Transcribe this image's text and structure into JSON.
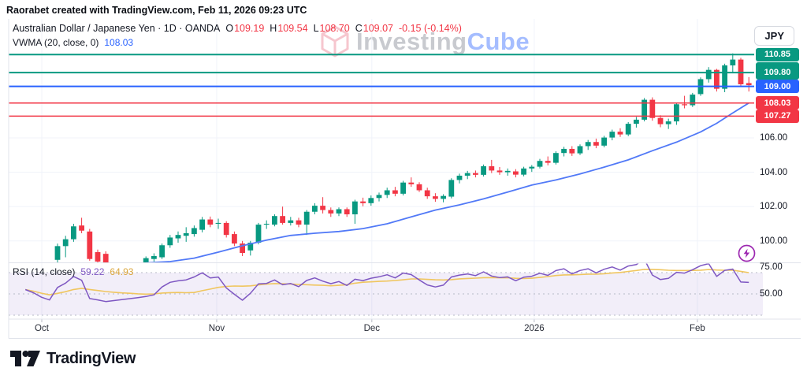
{
  "meta": {
    "attribution": "Raorabet created with TradingView.com, Feb 11, 2026 09:23 UTC"
  },
  "header": {
    "symbol_line": "Australian Dollar / Japanese Yen · 1D · OANDA",
    "ohlc": {
      "o_label": "O",
      "o": "109.19",
      "h_label": "H",
      "h": "109.54",
      "l_label": "L",
      "l": "108.70",
      "c_label": "C",
      "c": "109.07",
      "change": "-0.15 (-0.14%)"
    },
    "indicator_label": "VWMA (20, close, 0)",
    "indicator_value": "108.03"
  },
  "currency_button": "JPY",
  "watermark": {
    "part1": "Investing",
    "part2": "Cube"
  },
  "rsi_label": {
    "name": "RSI (14, close)",
    "rsi_value": "59.22",
    "ma_value": "64.93"
  },
  "logo": {
    "text": "TradingView"
  },
  "colors": {
    "up": "#089981",
    "down": "#f23645",
    "blue_level": "#2962ff",
    "vwma_line": "#5179f7",
    "rsi_line": "#7e57c2",
    "rsi_ma_line": "#f0c65f",
    "grid": "#f0f3fa",
    "pane_border": "#e0e3eb",
    "band_fill": "rgba(126,87,194,0.10)",
    "dash": "#b7bac6",
    "zap": "#9c27b0"
  },
  "chart_data": {
    "type": "candlestick",
    "title": "Australian Dollar / Japanese Yen",
    "timeframe": "1D",
    "exchange": "OANDA",
    "last_ohlc": {
      "open": 109.19,
      "high": 109.54,
      "low": 108.7,
      "close": 109.07,
      "change": -0.15,
      "change_pct": -0.14
    },
    "price_axis_ticks": [
      {
        "label": "106.00",
        "value": 106
      },
      {
        "label": "104.00",
        "value": 104
      },
      {
        "label": "102.00",
        "value": 102
      },
      {
        "label": "100.00",
        "value": 100
      }
    ],
    "rsi_axis_ticks": [
      {
        "label": "75.00",
        "value": 75
      },
      {
        "label": "50.00",
        "value": 50
      }
    ],
    "x_ticks": [
      {
        "label": "Oct",
        "slot": -1.96
      },
      {
        "label": "Nov",
        "slot": 19.8
      },
      {
        "label": "Dec",
        "slot": 39.1
      },
      {
        "label": "2026",
        "slot": 59.3
      },
      {
        "label": "Feb",
        "slot": 79.6
      }
    ],
    "levels": [
      {
        "label": "110.85",
        "value": 110.85,
        "color": "#089981",
        "width": 2
      },
      {
        "label": "109.80",
        "value": 109.8,
        "color": "#089981",
        "width": 2
      },
      {
        "label": "109.00",
        "value": 109.0,
        "color": "#2962ff",
        "width": 2
      },
      {
        "label": "108.03",
        "value": 108.03,
        "color": "#f23645",
        "width": 1.5
      },
      {
        "label": "107.27",
        "value": 107.27,
        "color": "#f23645",
        "width": 1.5
      }
    ],
    "grid_price_lines": [
      106,
      104,
      102,
      100
    ],
    "rsi_guides": [
      70,
      50,
      30
    ],
    "rsi_band": [
      30,
      70
    ],
    "candles": [
      [
        98.9,
        99.85,
        98.72,
        99.7
      ],
      [
        99.7,
        100.3,
        99.05,
        100.1
      ],
      [
        100.1,
        101.0,
        99.95,
        100.85
      ],
      [
        100.9,
        101.35,
        100.45,
        100.6
      ],
      [
        100.55,
        100.7,
        98.85,
        98.95
      ],
      [
        99.35,
        99.5,
        98.62,
        98.8
      ],
      [
        99.25,
        99.4,
        98.45,
        98.6
      ],
      null,
      null,
      null,
      null,
      [
        98.72,
        99.1,
        98.58,
        99.0
      ],
      [
        98.95,
        99.28,
        98.8,
        99.12
      ],
      [
        99.05,
        99.85,
        98.95,
        99.75
      ],
      [
        99.75,
        100.35,
        99.6,
        100.2
      ],
      [
        100.15,
        100.55,
        99.9,
        100.35
      ],
      [
        100.3,
        100.8,
        99.95,
        100.45
      ],
      [
        100.4,
        100.9,
        100.25,
        100.75
      ],
      [
        100.65,
        101.4,
        100.5,
        101.25
      ],
      [
        101.25,
        101.42,
        100.8,
        100.95
      ],
      [
        101.0,
        101.3,
        100.7,
        101.05
      ],
      [
        101.05,
        101.15,
        100.2,
        100.35
      ],
      [
        100.4,
        100.55,
        99.7,
        99.85
      ],
      [
        99.85,
        100.0,
        99.12,
        99.3
      ],
      [
        99.45,
        100.0,
        99.15,
        99.9
      ],
      [
        99.9,
        101.05,
        99.8,
        100.95
      ],
      [
        100.95,
        101.2,
        100.7,
        101.0
      ],
      [
        100.95,
        101.55,
        100.85,
        101.45
      ],
      [
        101.45,
        102.0,
        100.95,
        101.05
      ],
      [
        101.05,
        101.4,
        100.9,
        101.2
      ],
      [
        101.2,
        101.35,
        100.8,
        100.95
      ],
      [
        100.95,
        101.8,
        100.35,
        101.7
      ],
      [
        101.7,
        102.2,
        101.55,
        102.05
      ],
      [
        102.05,
        102.55,
        101.6,
        101.8
      ],
      [
        101.8,
        101.95,
        101.4,
        101.6
      ],
      [
        101.6,
        101.95,
        101.45,
        101.85
      ],
      [
        101.85,
        101.95,
        101.4,
        101.55
      ],
      [
        101.55,
        102.4,
        101.0,
        102.3
      ],
      [
        102.3,
        102.52,
        102.02,
        102.2
      ],
      [
        102.2,
        102.65,
        102.05,
        102.5
      ],
      [
        102.5,
        102.82,
        102.3,
        102.68
      ],
      [
        102.68,
        103.1,
        102.5,
        102.95
      ],
      [
        102.95,
        103.15,
        102.6,
        102.75
      ],
      [
        102.75,
        103.5,
        102.65,
        103.4
      ],
      [
        103.4,
        103.7,
        103.15,
        103.3
      ],
      [
        103.3,
        103.42,
        102.85,
        102.95
      ],
      [
        102.95,
        103.1,
        102.45,
        102.6
      ],
      [
        102.6,
        102.78,
        102.28,
        102.45
      ],
      [
        102.45,
        102.72,
        102.25,
        102.62
      ],
      [
        102.58,
        103.65,
        102.48,
        103.55
      ],
      [
        103.55,
        103.92,
        103.35,
        103.8
      ],
      [
        103.8,
        104.08,
        103.6,
        103.95
      ],
      [
        103.95,
        104.1,
        103.7,
        103.85
      ],
      [
        103.85,
        104.45,
        103.75,
        104.35
      ],
      [
        104.35,
        104.72,
        103.95,
        104.1
      ],
      [
        104.1,
        104.3,
        103.85,
        104.0
      ],
      [
        104.0,
        104.22,
        103.8,
        104.08
      ],
      [
        104.05,
        104.18,
        103.7,
        103.86
      ],
      [
        103.86,
        104.32,
        103.76,
        104.22
      ],
      [
        104.22,
        104.42,
        104.02,
        104.32
      ],
      [
        104.32,
        104.78,
        104.22,
        104.66
      ],
      [
        104.66,
        104.92,
        104.4,
        104.55
      ],
      [
        104.55,
        105.22,
        104.45,
        105.12
      ],
      [
        105.12,
        105.48,
        104.92,
        105.36
      ],
      [
        105.36,
        105.52,
        104.95,
        105.1
      ],
      [
        105.1,
        105.62,
        105.0,
        105.52
      ],
      [
        105.52,
        105.88,
        105.3,
        105.76
      ],
      [
        105.76,
        105.96,
        105.4,
        105.55
      ],
      [
        105.55,
        106.12,
        105.45,
        106.02
      ],
      [
        106.02,
        106.48,
        105.86,
        106.36
      ],
      [
        106.36,
        106.56,
        106.06,
        106.2
      ],
      [
        106.2,
        106.92,
        106.1,
        106.82
      ],
      [
        106.82,
        107.22,
        106.6,
        107.06
      ],
      [
        107.06,
        108.32,
        106.96,
        108.22
      ],
      [
        108.22,
        108.36,
        107.0,
        107.16
      ],
      [
        107.16,
        107.32,
        106.62,
        106.8
      ],
      [
        106.8,
        107.12,
        106.52,
        106.96
      ],
      [
        106.96,
        108.06,
        106.76,
        107.96
      ],
      [
        107.96,
        108.45,
        107.72,
        107.9
      ],
      [
        107.9,
        108.62,
        107.8,
        108.52
      ],
      [
        108.55,
        109.52,
        108.45,
        109.42
      ],
      [
        109.42,
        110.12,
        109.22,
        109.96
      ],
      [
        109.96,
        110.02,
        108.7,
        108.86
      ],
      [
        108.86,
        110.32,
        108.66,
        110.22
      ],
      [
        110.22,
        110.92,
        109.76,
        110.56
      ],
      [
        110.56,
        110.66,
        109.0,
        109.12
      ],
      [
        109.19,
        109.54,
        108.7,
        109.07
      ]
    ],
    "vwma": {
      "label": "VWMA (20, close, 0)",
      "current": 108.03,
      "points": [
        [
          11,
          98.72
        ],
        [
          14,
          98.8
        ],
        [
          17,
          99.0
        ],
        [
          20,
          99.35
        ],
        [
          23,
          99.72
        ],
        [
          26,
          100.05
        ],
        [
          29,
          100.32
        ],
        [
          32,
          100.45
        ],
        [
          35,
          100.55
        ],
        [
          38,
          100.72
        ],
        [
          41,
          101.0
        ],
        [
          44,
          101.4
        ],
        [
          47,
          101.8
        ],
        [
          50,
          102.1
        ],
        [
          53,
          102.45
        ],
        [
          56,
          102.85
        ],
        [
          59,
          103.25
        ],
        [
          62,
          103.55
        ],
        [
          65,
          103.9
        ],
        [
          68,
          104.3
        ],
        [
          71,
          104.72
        ],
        [
          74,
          105.25
        ],
        [
          77,
          105.75
        ],
        [
          80,
          106.35
        ],
        [
          82,
          106.85
        ],
        [
          84,
          107.45
        ],
        [
          86,
          108.03
        ]
      ]
    },
    "rsi": {
      "period": 14,
      "current": 59.22,
      "ma_current": 64.93,
      "lead_in_closes": [
        99.2,
        99.5,
        99.3,
        99.6,
        99.4,
        99.1,
        98.9,
        99.2,
        99.5,
        99.8,
        99.6,
        99.9,
        100.1,
        99.8,
        99.5,
        99.3,
        99.0,
        98.8
      ]
    }
  }
}
